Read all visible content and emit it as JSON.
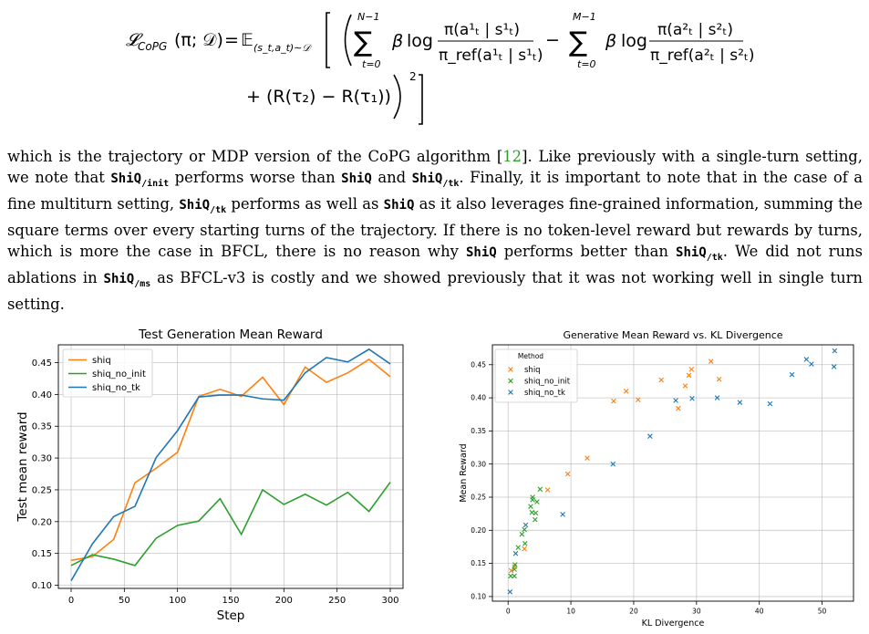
{
  "equation": {
    "lhs": "𝓛",
    "lhs_sub": "CoPG",
    "lhs_args": "(π; 𝒟)",
    "eq_sign": "=",
    "expect": "𝔼",
    "expect_sub": "(s_t,a_t)∼𝒟",
    "sum1_top": "N−1",
    "sum1_bottom": "t=0",
    "sum2_top": "M−1",
    "sum2_bottom": "t=0",
    "beta": "β",
    "log": "log",
    "frac1_num": "π(a¹ₜ | s¹ₜ)",
    "frac1_den": "π_ref(a¹ₜ | s¹ₜ)",
    "frac2_num": "π(a²ₜ | s²ₜ)",
    "frac2_den": "π_ref(a²ₜ | s²ₜ)",
    "minus": "−",
    "line2": "+ (R(τ₂) − R(τ₁))",
    "power": "2"
  },
  "paragraph": {
    "p1": "which is the trajectory or MDP version of the CoPG algorithm [",
    "cite": "12",
    "p2": "]. Like previously with a single-turn setting, we note that ",
    "c1": "ShiQ/init",
    "p3": " performs worse than ",
    "c2": "ShiQ",
    "p4": " and ",
    "c3": "ShiQ/tk",
    "p5": ". Finally, it is important to note that in the case of a fine multiturn setting, ",
    "c4": "ShiQ/tk",
    "p6": " performs as well as ",
    "c5": "ShiQ",
    "p7": " as it also leverages fine-grained information, summing the square terms over every starting turns of the trajectory. If there is no token-level reward but rewards by turns, which is more the case in BFCL, there is no reason why ",
    "c6": "ShiQ",
    "p8": " performs better than ",
    "c7": "ShiQ/tk",
    "p9": ". We did not runs ablations in ",
    "c8": "ShiQ/ms",
    "p10": " as BFCL-v3 is costly and we showed previously that it was not working well in single turn setting."
  },
  "chart_data": [
    {
      "type": "line",
      "title": "Test Generation Mean Reward",
      "xlabel": "Step",
      "ylabel": "Test mean reward",
      "xlim": [
        -12,
        312
      ],
      "ylim": [
        0.095,
        0.478
      ],
      "xticks": [
        0,
        50,
        100,
        150,
        200,
        250,
        300
      ],
      "yticks": [
        0.1,
        0.15,
        0.2,
        0.25,
        0.3,
        0.35,
        0.4,
        0.45
      ],
      "grid": true,
      "legend": "top-left",
      "x": [
        0,
        20,
        40,
        60,
        80,
        100,
        120,
        140,
        160,
        180,
        200,
        220,
        240,
        260,
        280,
        300
      ],
      "series": [
        {
          "name": "shiq",
          "color": "#ff7f0e",
          "values": [
            0.139,
            0.145,
            0.172,
            0.261,
            0.284,
            0.309,
            0.397,
            0.408,
            0.397,
            0.427,
            0.384,
            0.443,
            0.419,
            0.434,
            0.455,
            0.428
          ]
        },
        {
          "name": "shiq_no_init",
          "color": "#2ca02c",
          "values": [
            0.131,
            0.148,
            0.141,
            0.131,
            0.174,
            0.194,
            0.201,
            0.236,
            0.18,
            0.25,
            0.227,
            0.243,
            0.226,
            0.246,
            0.216,
            0.262
          ]
        },
        {
          "name": "shiq_no_tk",
          "color": "#1f77b4",
          "values": [
            0.107,
            0.165,
            0.208,
            0.224,
            0.301,
            0.343,
            0.396,
            0.399,
            0.399,
            0.393,
            0.391,
            0.434,
            0.458,
            0.451,
            0.471,
            0.448
          ]
        }
      ]
    },
    {
      "type": "scatter",
      "title": "Generative Mean Reward vs. KL Divergence",
      "xlabel": "KL Divergence",
      "ylabel": "Mean Reward",
      "xlim": [
        -2.5,
        55
      ],
      "ylim": [
        0.093,
        0.48
      ],
      "xticks": [
        0,
        10,
        20,
        30,
        40,
        50
      ],
      "yticks": [
        0.1,
        0.15,
        0.2,
        0.25,
        0.3,
        0.35,
        0.4,
        0.45
      ],
      "grid": true,
      "legend": "top-left",
      "legend_title": "Method",
      "series": [
        {
          "name": "shiq",
          "color": "#ff7f0e",
          "points": [
            [
              0.5,
              0.139
            ],
            [
              1.0,
              0.145
            ],
            [
              2.6,
              0.172
            ],
            [
              6.3,
              0.261
            ],
            [
              9.5,
              0.285
            ],
            [
              12.6,
              0.309
            ],
            [
              16.8,
              0.395
            ],
            [
              18.8,
              0.41
            ],
            [
              20.7,
              0.397
            ],
            [
              24.4,
              0.427
            ],
            [
              27.1,
              0.384
            ],
            [
              28.2,
              0.418
            ],
            [
              28.8,
              0.434
            ],
            [
              29.2,
              0.443
            ],
            [
              32.3,
              0.455
            ],
            [
              33.6,
              0.428
            ]
          ]
        },
        {
          "name": "shiq_no_init",
          "color": "#2ca02c",
          "points": [
            [
              0.4,
              0.131
            ],
            [
              1.1,
              0.148
            ],
            [
              1.0,
              0.141
            ],
            [
              1.0,
              0.131
            ],
            [
              1.6,
              0.174
            ],
            [
              2.2,
              0.194
            ],
            [
              2.6,
              0.201
            ],
            [
              3.6,
              0.236
            ],
            [
              2.7,
              0.18
            ],
            [
              3.9,
              0.25
            ],
            [
              3.8,
              0.227
            ],
            [
              4.6,
              0.243
            ],
            [
              4.4,
              0.226
            ],
            [
              3.9,
              0.246
            ],
            [
              4.3,
              0.216
            ],
            [
              5.1,
              0.262
            ]
          ]
        },
        {
          "name": "shiq_no_tk",
          "color": "#1f77b4",
          "points": [
            [
              0.3,
              0.107
            ],
            [
              1.2,
              0.165
            ],
            [
              2.8,
              0.208
            ],
            [
              8.7,
              0.224
            ],
            [
              16.7,
              0.3
            ],
            [
              22.6,
              0.342
            ],
            [
              26.7,
              0.396
            ],
            [
              29.3,
              0.399
            ],
            [
              33.3,
              0.4
            ],
            [
              36.9,
              0.393
            ],
            [
              41.7,
              0.391
            ],
            [
              45.2,
              0.435
            ],
            [
              47.5,
              0.458
            ],
            [
              48.3,
              0.451
            ],
            [
              52.0,
              0.471
            ],
            [
              51.9,
              0.447
            ]
          ]
        }
      ]
    }
  ]
}
